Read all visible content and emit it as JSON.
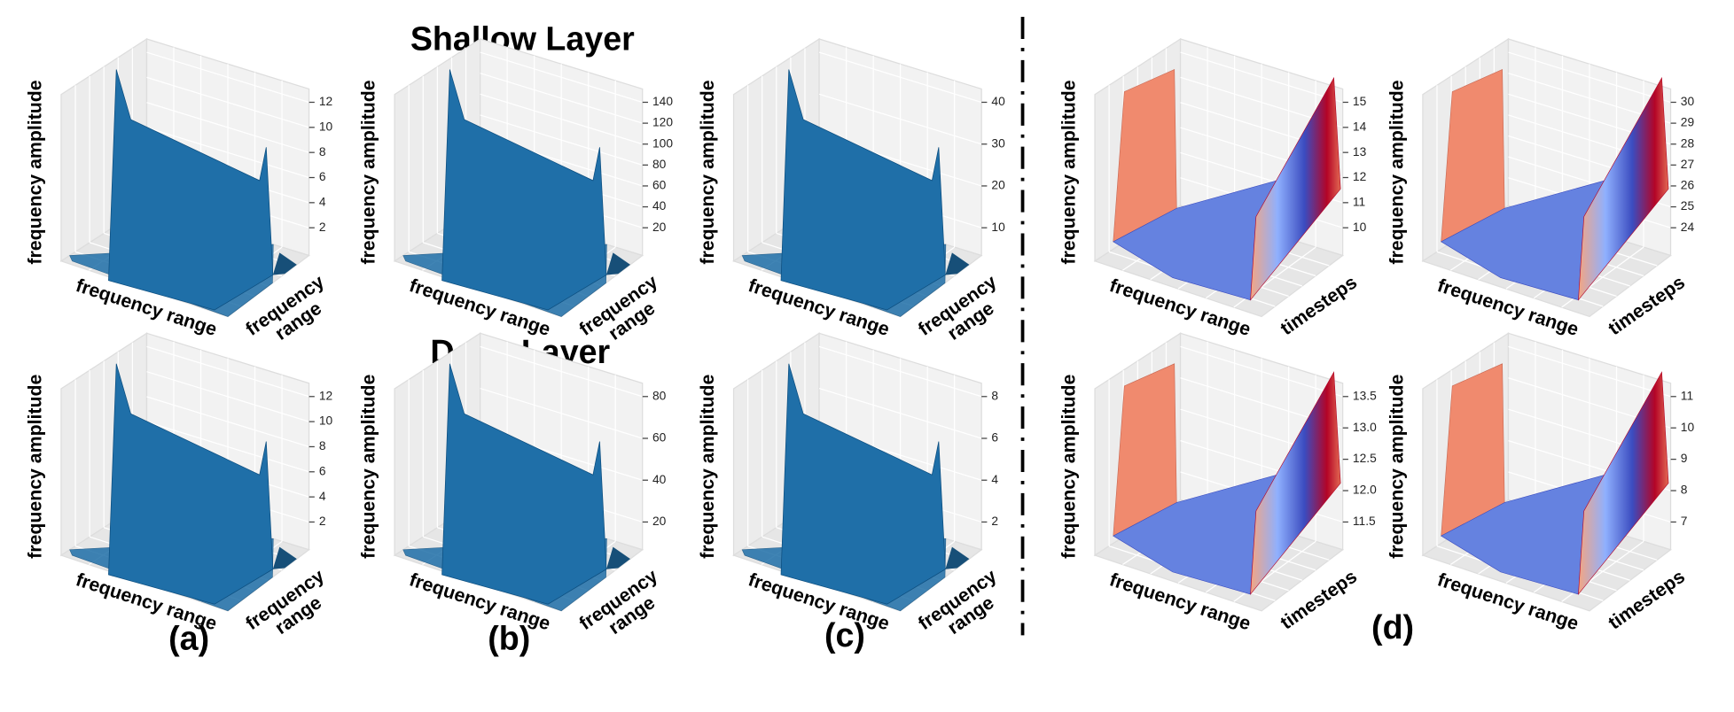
{
  "titles": {
    "shallow": "Shallow Layer",
    "deep": "Deep Layer"
  },
  "panel_labels": [
    "(a)",
    "(b)",
    "(c)",
    "(d)"
  ],
  "panels": [
    {
      "zlabel": "frequency amplitude",
      "xlabel": "frequency range",
      "ylabel": [
        "frequency",
        "range"
      ],
      "zticks": [
        12,
        10,
        8,
        6,
        4,
        2
      ],
      "color": "#1f6fa8"
    },
    {
      "zlabel": "frequency amplitude",
      "xlabel": "frequency range",
      "ylabel": [
        "frequency",
        "range"
      ],
      "zticks": [
        140,
        120,
        100,
        80,
        60,
        40,
        20
      ],
      "color": "#1f6fa8"
    },
    {
      "zlabel": "frequency amplitude",
      "xlabel": "frequency range",
      "ylabel": [
        "frequency",
        "range"
      ],
      "zticks": [
        40,
        30,
        20,
        10
      ],
      "color": "#1f6fa8"
    },
    {
      "zlabel": "frequency amplitude",
      "xlabel": "frequency range",
      "ylabel": [
        "frequency",
        "range"
      ],
      "zticks": [
        12,
        10,
        8,
        6,
        4,
        2
      ],
      "color": "#1f6fa8"
    },
    {
      "zlabel": "frequency amplitude",
      "xlabel": "frequency range",
      "ylabel": [
        "frequency",
        "range"
      ],
      "zticks": [
        80,
        60,
        40,
        20
      ],
      "color": "#1f6fa8"
    },
    {
      "zlabel": "frequency amplitude",
      "xlabel": "frequency range",
      "ylabel": [
        "frequency",
        "range"
      ],
      "zticks": [
        8,
        6,
        4,
        2
      ],
      "color": "#1f6fa8"
    },
    {
      "zlabel": "frequency amplitude",
      "xlabel": "frequency range",
      "ylabel": [
        "timesteps"
      ],
      "zticks": [
        15,
        14,
        13,
        12,
        11,
        10
      ],
      "cmap": "coolwarm"
    },
    {
      "zlabel": "frequency amplitude",
      "xlabel": "frequency range",
      "ylabel": [
        "timesteps"
      ],
      "zticks": [
        30,
        29,
        28,
        27,
        26,
        25,
        24
      ],
      "cmap": "coolwarm"
    },
    {
      "zlabel": "frequency amplitude",
      "xlabel": "frequency range",
      "ylabel": [
        "timesteps"
      ],
      "zticks": [
        13.5,
        {
          "value": 13,
          "label": "13.0"
        },
        12.5,
        {
          "value": 12,
          "label": "12.0"
        },
        11.5
      ],
      "cmap": "coolwarm"
    },
    {
      "zlabel": "frequency amplitude",
      "xlabel": "frequency range",
      "ylabel": [
        "timesteps"
      ],
      "zticks": [
        11,
        10,
        9,
        8,
        7
      ],
      "cmap": "coolwarm"
    }
  ]
}
